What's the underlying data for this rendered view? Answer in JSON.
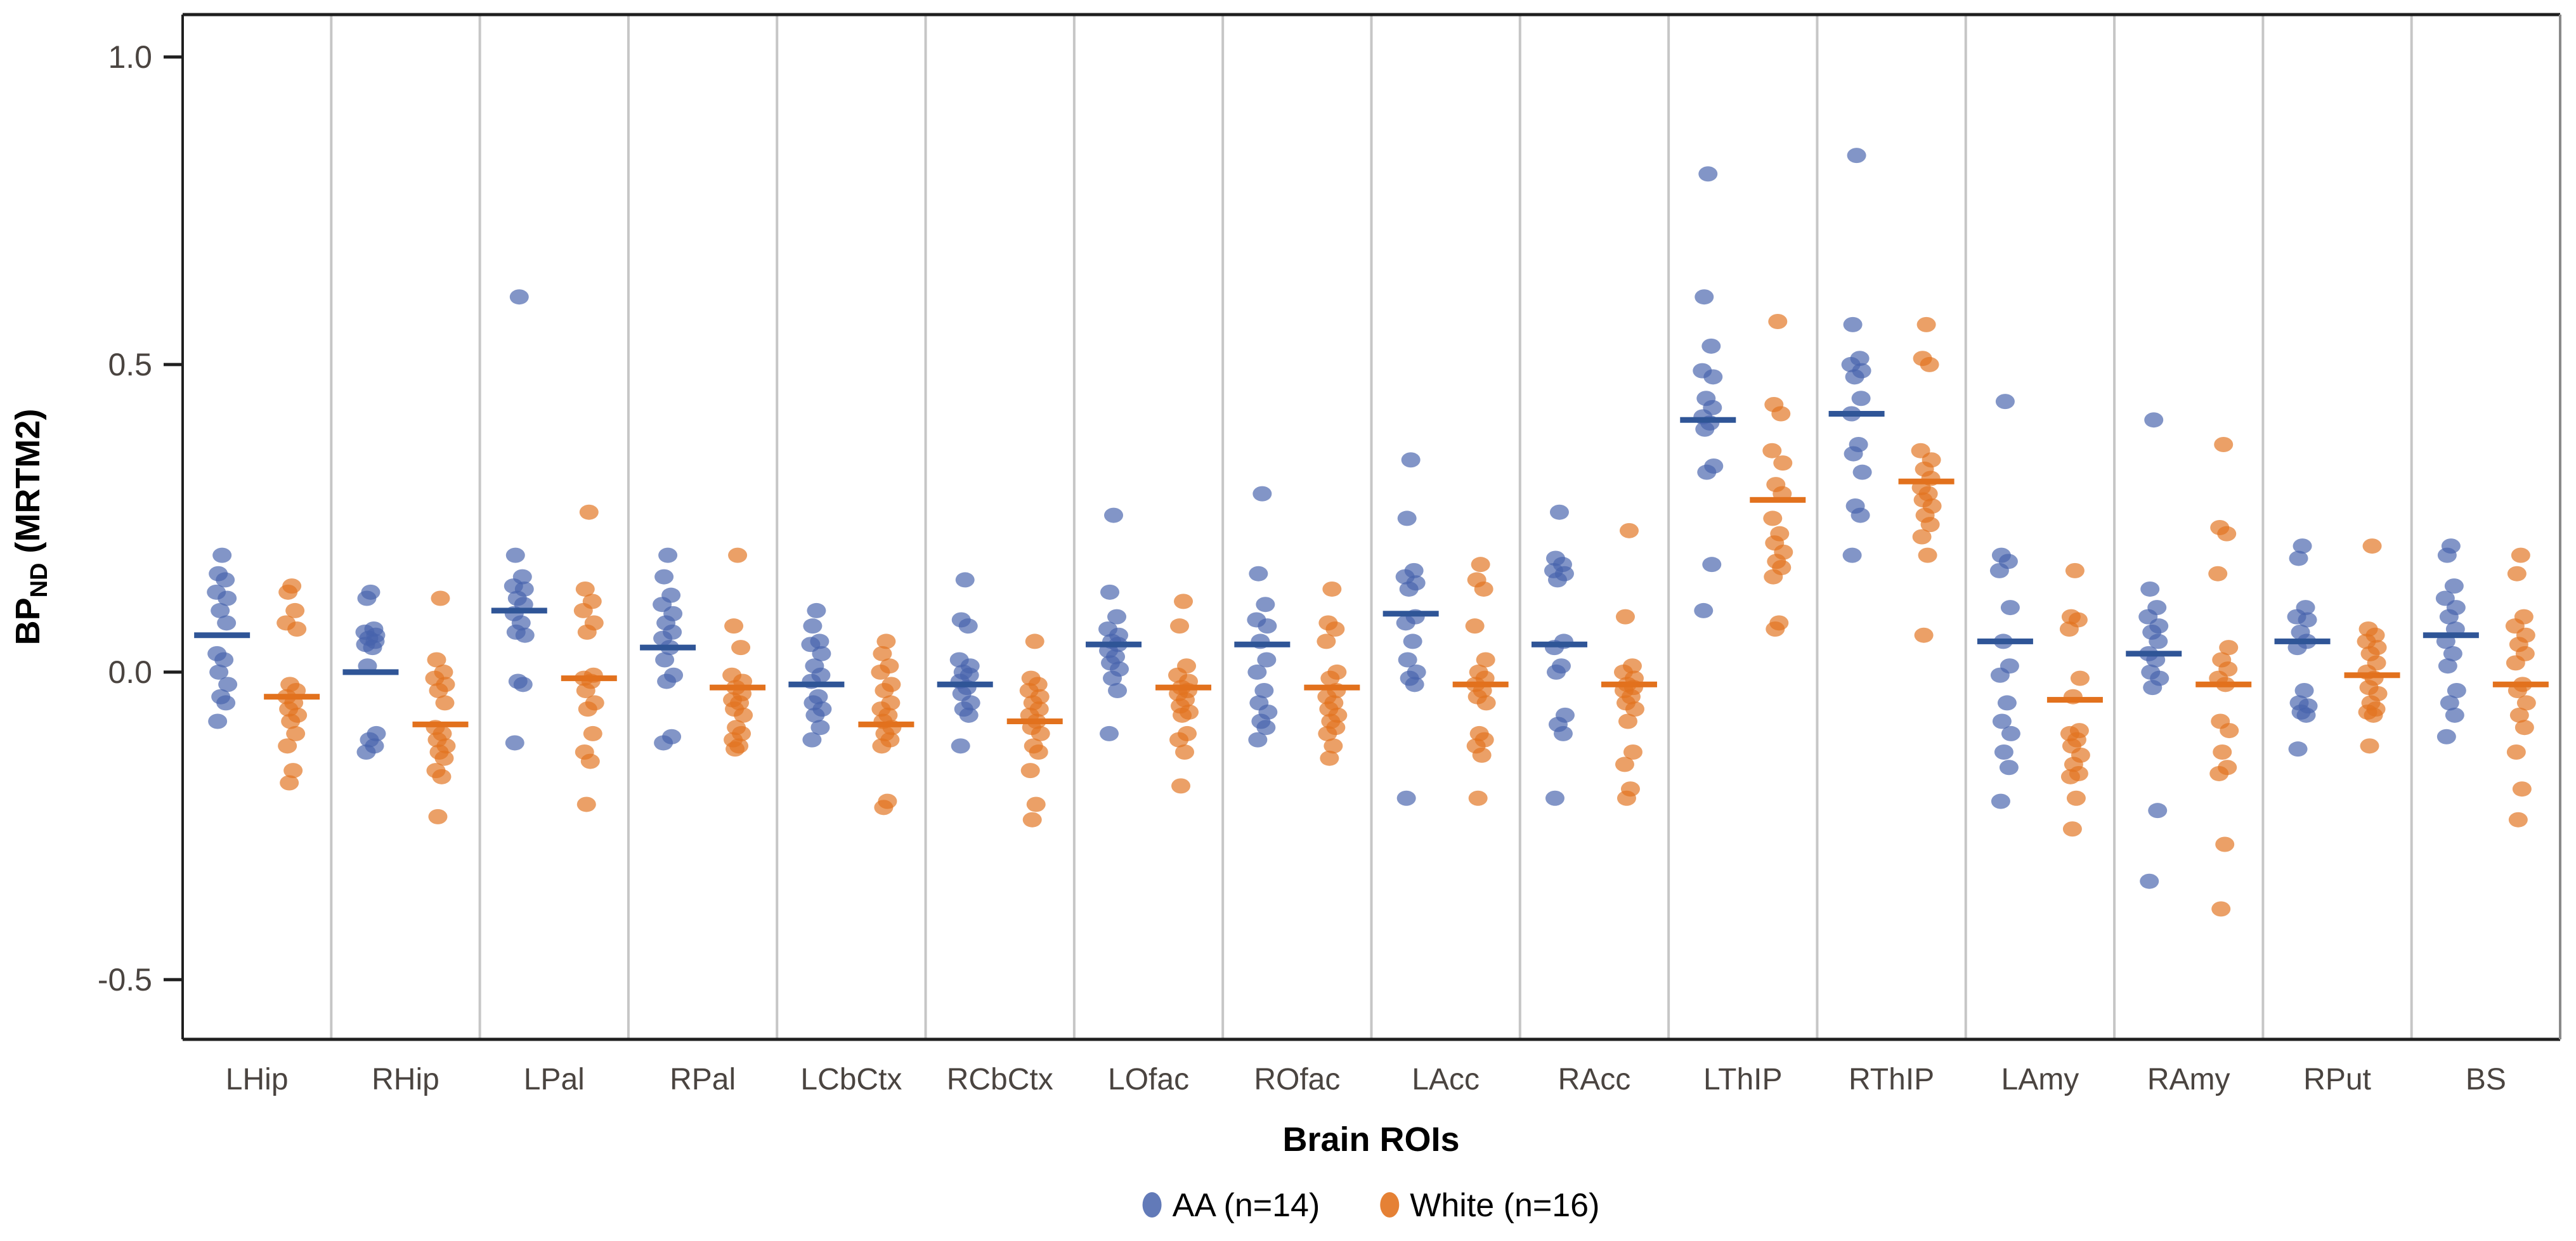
{
  "chart_data": {
    "type": "scatter",
    "title": "",
    "xlabel": "Brain ROIs",
    "ylabel": "BPND (MRTM2)",
    "y_axis": {
      "prefix": "BP",
      "subscript": "ND",
      "suffix": " (MRTM2)"
    },
    "ylim": [
      -0.597,
      1.069
    ],
    "yticks": [
      {
        "value": 1.0,
        "label": "1.0"
      },
      {
        "value": 0.5,
        "label": "0.5"
      },
      {
        "value": 0.0,
        "label": "0.0"
      },
      {
        "value": -0.5,
        "label": "-0.5"
      }
    ],
    "grid": "vertical-category-separators",
    "legend_position": "bottom-center",
    "categories": [
      "LHip",
      "RHip",
      "LPal",
      "RPal",
      "LCbCtx",
      "RCbCtx",
      "LOfac",
      "ROfac",
      "LAcc",
      "RAcc",
      "LThIP",
      "RThIP",
      "LAmy",
      "RAmy",
      "RPut",
      "BS"
    ],
    "series": [
      {
        "name": "AA (n=14)",
        "n": 14,
        "color": "#4763AC",
        "bar_color": "#2F5597",
        "values": [
          [
            0.19,
            0.16,
            0.15,
            0.13,
            0.12,
            0.1,
            0.08,
            0.03,
            0.02,
            0.0,
            -0.02,
            -0.04,
            -0.05,
            -0.08
          ],
          [
            0.13,
            0.12,
            0.07,
            0.065,
            0.06,
            0.055,
            0.05,
            0.045,
            0.04,
            0.01,
            -0.1,
            -0.11,
            -0.12,
            -0.13
          ],
          [
            0.61,
            0.19,
            0.155,
            0.14,
            0.135,
            0.12,
            0.11,
            0.095,
            0.08,
            0.065,
            0.06,
            -0.015,
            -0.02,
            -0.115
          ],
          [
            0.19,
            0.155,
            0.125,
            0.11,
            0.095,
            0.08,
            0.065,
            0.055,
            0.04,
            0.02,
            -0.005,
            -0.015,
            -0.105,
            -0.115
          ],
          [
            0.1,
            0.075,
            0.05,
            0.045,
            0.03,
            0.01,
            -0.005,
            -0.015,
            -0.04,
            -0.05,
            -0.06,
            -0.07,
            -0.09,
            -0.11
          ],
          [
            0.15,
            0.085,
            0.075,
            0.02,
            0.01,
            0.0,
            -0.005,
            -0.015,
            -0.025,
            -0.035,
            -0.05,
            -0.06,
            -0.07,
            -0.12
          ],
          [
            0.255,
            0.13,
            0.09,
            0.07,
            0.06,
            0.05,
            0.045,
            0.035,
            0.025,
            0.015,
            0.005,
            -0.01,
            -0.03,
            -0.1
          ],
          [
            0.29,
            0.16,
            0.11,
            0.085,
            0.075,
            0.05,
            0.02,
            0.0,
            -0.03,
            -0.05,
            -0.065,
            -0.08,
            -0.09,
            -0.11
          ],
          [
            0.345,
            0.25,
            0.165,
            0.155,
            0.145,
            0.135,
            0.09,
            0.08,
            0.05,
            0.02,
            0.0,
            -0.01,
            -0.02,
            -0.205
          ],
          [
            0.26,
            0.185,
            0.175,
            0.165,
            0.16,
            0.15,
            0.05,
            0.04,
            0.01,
            0.0,
            -0.07,
            -0.085,
            -0.1,
            -0.205
          ],
          [
            0.81,
            0.61,
            0.53,
            0.49,
            0.48,
            0.445,
            0.43,
            0.415,
            0.405,
            0.395,
            0.335,
            0.325,
            0.175,
            0.1
          ],
          [
            0.84,
            0.565,
            0.51,
            0.5,
            0.49,
            0.48,
            0.445,
            0.42,
            0.37,
            0.355,
            0.325,
            0.27,
            0.255,
            0.19
          ],
          [
            0.44,
            0.19,
            0.18,
            0.165,
            0.105,
            0.05,
            0.01,
            -0.005,
            -0.05,
            -0.08,
            -0.1,
            -0.13,
            -0.155,
            -0.21
          ],
          [
            0.41,
            0.135,
            0.105,
            0.09,
            0.075,
            0.065,
            0.05,
            0.03,
            0.02,
            0.0,
            -0.01,
            -0.025,
            -0.225,
            -0.34
          ],
          [
            0.205,
            0.185,
            0.105,
            0.09,
            0.085,
            0.065,
            0.05,
            0.04,
            -0.03,
            -0.05,
            -0.055,
            -0.065,
            -0.07,
            -0.125
          ],
          [
            0.205,
            0.19,
            0.14,
            0.12,
            0.105,
            0.09,
            0.07,
            0.05,
            0.03,
            0.01,
            -0.03,
            -0.05,
            -0.07,
            -0.105
          ]
        ],
        "means": [
          0.06,
          0.0,
          0.1,
          0.04,
          -0.02,
          -0.02,
          0.045,
          0.045,
          0.095,
          0.045,
          0.41,
          0.42,
          0.05,
          0.03,
          0.05,
          0.06
        ]
      },
      {
        "name": "White (n=16)",
        "n": 16,
        "color": "#E2731F",
        "bar_color": "#E2711D",
        "values": [
          [
            0.14,
            0.13,
            0.1,
            0.08,
            0.07,
            -0.02,
            -0.03,
            -0.04,
            -0.05,
            -0.06,
            -0.07,
            -0.08,
            -0.1,
            -0.12,
            -0.16,
            -0.18
          ],
          [
            0.12,
            0.02,
            0.0,
            -0.01,
            -0.02,
            -0.03,
            -0.05,
            -0.09,
            -0.1,
            -0.11,
            -0.12,
            -0.13,
            -0.14,
            -0.16,
            -0.17,
            -0.235
          ],
          [
            0.26,
            0.135,
            0.115,
            0.1,
            0.08,
            0.065,
            -0.005,
            -0.01,
            -0.015,
            -0.03,
            -0.05,
            -0.06,
            -0.1,
            -0.13,
            -0.145,
            -0.215
          ],
          [
            0.19,
            0.075,
            0.04,
            -0.005,
            -0.015,
            -0.025,
            -0.035,
            -0.045,
            -0.05,
            -0.06,
            -0.07,
            -0.09,
            -0.1,
            -0.11,
            -0.12,
            -0.125
          ],
          [
            0.05,
            0.03,
            0.01,
            0.0,
            -0.02,
            -0.03,
            -0.05,
            -0.06,
            -0.07,
            -0.08,
            -0.09,
            -0.1,
            -0.11,
            -0.12,
            -0.21,
            -0.22
          ],
          [
            0.05,
            -0.01,
            -0.02,
            -0.03,
            -0.04,
            -0.05,
            -0.06,
            -0.07,
            -0.08,
            -0.09,
            -0.1,
            -0.12,
            -0.13,
            -0.16,
            -0.215,
            -0.24
          ],
          [
            0.115,
            0.075,
            0.01,
            -0.005,
            -0.015,
            -0.025,
            -0.03,
            -0.035,
            -0.045,
            -0.055,
            -0.065,
            -0.07,
            -0.1,
            -0.11,
            -0.13,
            -0.185
          ],
          [
            0.135,
            0.08,
            0.07,
            0.05,
            0.0,
            -0.01,
            -0.03,
            -0.04,
            -0.05,
            -0.06,
            -0.07,
            -0.08,
            -0.09,
            -0.1,
            -0.12,
            -0.14
          ],
          [
            0.175,
            0.15,
            0.135,
            0.075,
            0.02,
            0.0,
            -0.01,
            -0.02,
            -0.03,
            -0.04,
            -0.05,
            -0.1,
            -0.11,
            -0.12,
            -0.135,
            -0.205
          ],
          [
            0.23,
            0.09,
            0.01,
            0.0,
            -0.01,
            -0.02,
            -0.025,
            -0.03,
            -0.04,
            -0.05,
            -0.06,
            -0.08,
            -0.13,
            -0.15,
            -0.19,
            -0.205
          ],
          [
            0.57,
            0.435,
            0.42,
            0.36,
            0.34,
            0.305,
            0.29,
            0.25,
            0.225,
            0.21,
            0.195,
            0.18,
            0.17,
            0.155,
            0.08,
            0.07
          ],
          [
            0.565,
            0.51,
            0.5,
            0.36,
            0.345,
            0.33,
            0.315,
            0.3,
            0.29,
            0.28,
            0.27,
            0.255,
            0.24,
            0.22,
            0.19,
            0.06
          ],
          [
            0.165,
            0.09,
            0.085,
            0.07,
            -0.01,
            -0.04,
            -0.095,
            -0.1,
            -0.11,
            -0.12,
            -0.135,
            -0.15,
            -0.165,
            -0.17,
            -0.205,
            -0.255
          ],
          [
            0.37,
            0.235,
            0.225,
            0.16,
            0.04,
            0.02,
            0.005,
            -0.01,
            -0.02,
            -0.08,
            -0.095,
            -0.13,
            -0.155,
            -0.165,
            -0.28,
            -0.385
          ],
          [
            0.205,
            0.07,
            0.06,
            0.05,
            0.04,
            0.03,
            0.015,
            0.0,
            -0.01,
            -0.025,
            -0.035,
            -0.05,
            -0.06,
            -0.065,
            -0.07,
            -0.12
          ],
          [
            0.19,
            0.16,
            0.09,
            0.075,
            0.06,
            0.045,
            0.03,
            0.015,
            -0.02,
            -0.03,
            -0.05,
            -0.07,
            -0.09,
            -0.13,
            -0.19,
            -0.24
          ]
        ],
        "means": [
          -0.04,
          -0.085,
          -0.01,
          -0.025,
          -0.085,
          -0.08,
          -0.025,
          -0.025,
          -0.02,
          -0.02,
          0.28,
          0.31,
          -0.045,
          -0.02,
          -0.005,
          -0.02
        ]
      }
    ],
    "colors": {
      "panel_border": "#1f1f1f",
      "panel_border_right": "#8a8a8a",
      "separator": "#c6c6c6",
      "tick_text": "#4a4440",
      "title_text": "#000000"
    }
  }
}
